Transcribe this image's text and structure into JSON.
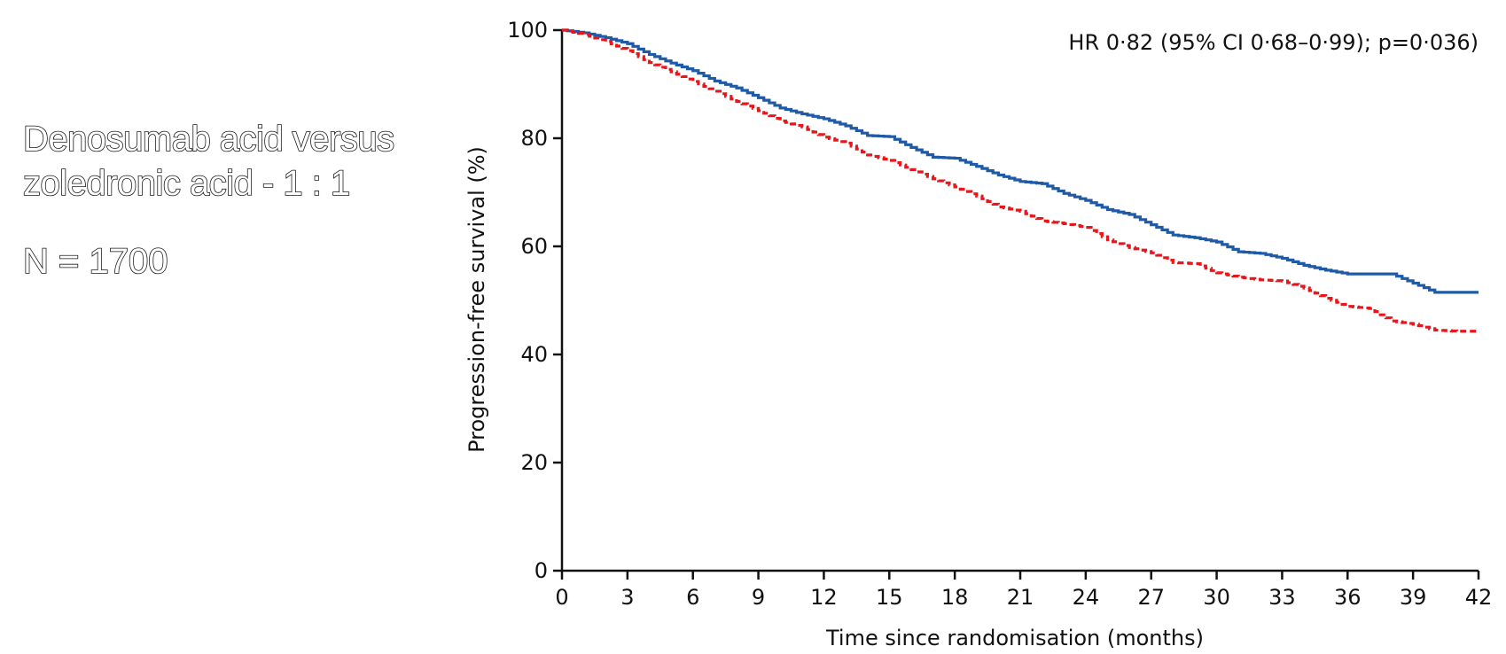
{
  "side_panel": {
    "title_line1": "Denosumab acid versus",
    "title_line2": "zoledronic acid - 1 : 1",
    "n_label": "N = 1700"
  },
  "chart_data": {
    "type": "line",
    "title": "",
    "xlabel": "Time since randomisation (months)",
    "ylabel": "Progression-free survival (%)",
    "annotation": "HR 0·82 (95% CI 0·68–0·99); p=0·036)",
    "xlim": [
      0,
      42
    ],
    "ylim": [
      0,
      100
    ],
    "x_ticks": [
      0,
      3,
      6,
      9,
      12,
      15,
      18,
      21,
      24,
      27,
      30,
      33,
      36,
      39,
      42
    ],
    "y_ticks": [
      0,
      20,
      40,
      60,
      80,
      100
    ],
    "series": [
      {
        "name": "Solid (blue) arm",
        "color": "#1f5aa6",
        "style": "solid",
        "x": [
          0,
          1,
          2,
          3,
          4,
          5,
          6,
          7,
          8,
          9,
          10,
          11,
          12,
          13,
          14,
          15,
          16,
          17,
          18,
          19,
          20,
          21,
          22,
          23,
          24,
          25,
          26,
          27,
          28,
          29,
          30,
          31,
          32,
          33,
          34,
          35,
          36,
          37,
          38,
          39,
          40,
          41,
          42
        ],
        "y": [
          100,
          99.5,
          98.6,
          97.5,
          95.5,
          93.9,
          92.5,
          90.6,
          89.3,
          87.5,
          85.6,
          84.5,
          83.6,
          82.3,
          80.5,
          80.3,
          78.3,
          76.5,
          76.3,
          74.8,
          73.2,
          72.0,
          71.6,
          69.8,
          68.5,
          66.8,
          65.9,
          64.0,
          62.1,
          61.6,
          60.8,
          59.0,
          58.7,
          57.8,
          56.5,
          55.6,
          54.9,
          54.9,
          54.9,
          53.2,
          51.5,
          51.5,
          51.5
        ]
      },
      {
        "name": "Dashed (red) arm",
        "color": "#e8161b",
        "style": "dashed",
        "x": [
          0,
          1,
          2,
          3,
          4,
          5,
          6,
          7,
          8,
          9,
          10,
          11,
          12,
          13,
          14,
          15,
          16,
          17,
          18,
          19,
          20,
          21,
          22,
          23,
          24,
          25,
          26,
          27,
          28,
          29,
          30,
          31,
          32,
          33,
          34,
          35,
          36,
          37,
          38,
          39,
          40,
          41,
          42
        ],
        "y": [
          100,
          99.2,
          97.9,
          96.2,
          94.0,
          92.3,
          90.5,
          88.7,
          86.8,
          85.1,
          83.2,
          82.1,
          80.2,
          79.1,
          76.9,
          75.9,
          74.2,
          72.5,
          71.0,
          69.3,
          67.3,
          66.5,
          64.7,
          64.2,
          63.5,
          61.2,
          59.8,
          58.8,
          57.0,
          56.8,
          55.1,
          54.3,
          53.8,
          53.6,
          52.3,
          50.4,
          48.9,
          48.5,
          46.2,
          45.6,
          44.5,
          44.3,
          44.3
        ]
      }
    ]
  }
}
